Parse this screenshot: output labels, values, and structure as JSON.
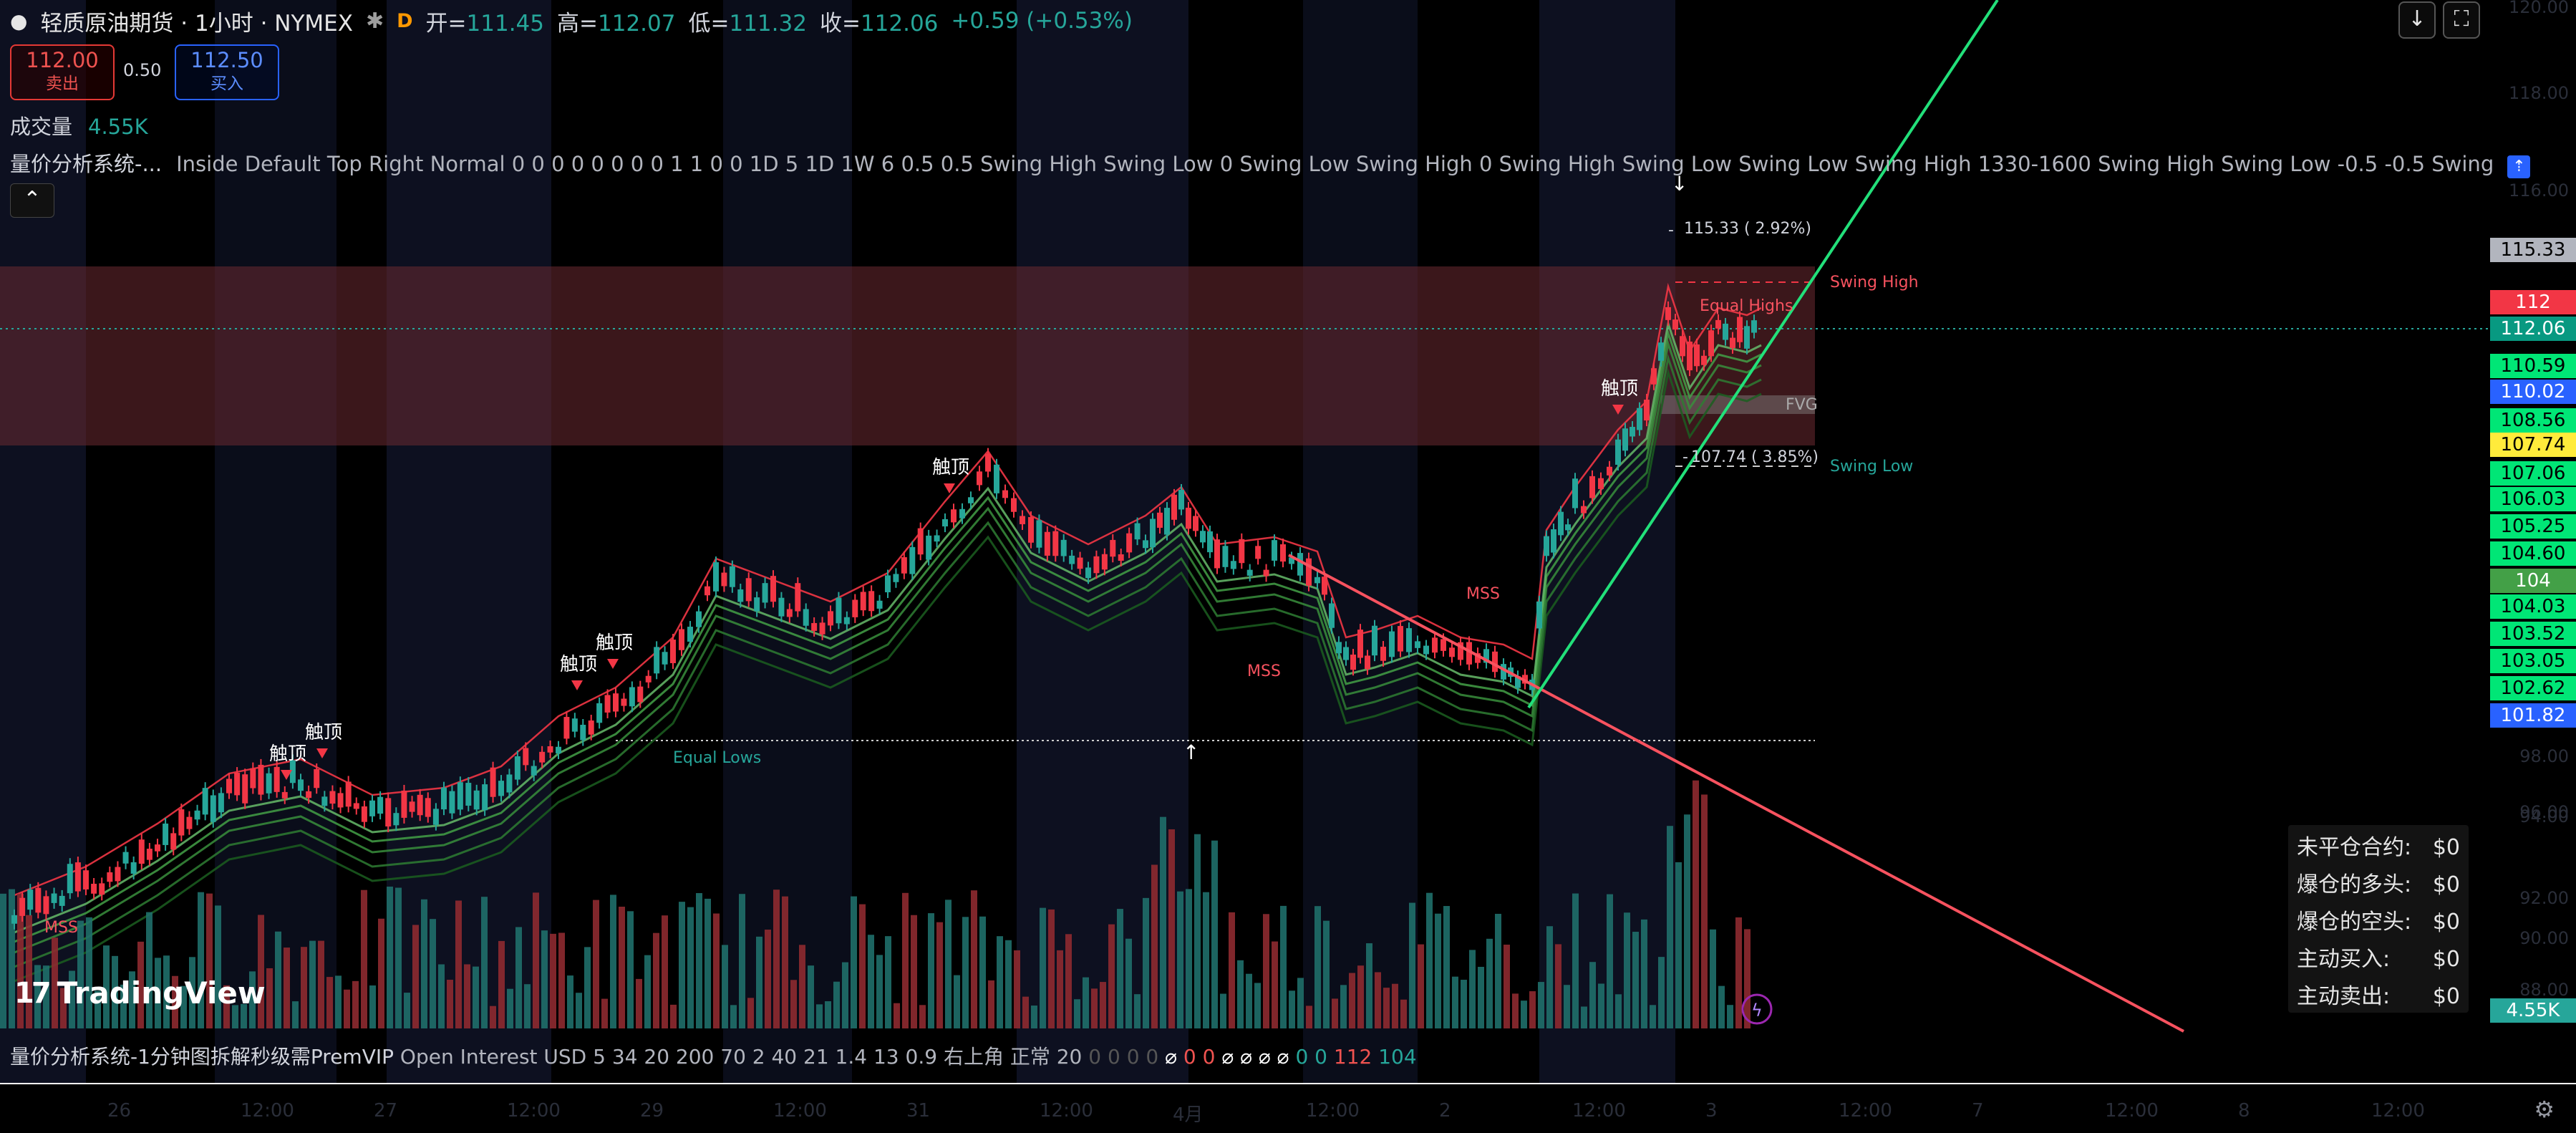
{
  "header": {
    "symbol": "轻质原油期货 · 1小时 · NYMEX",
    "interval_badge": "D",
    "open_label": "开=",
    "open": "111.45",
    "high_label": "高=",
    "high": "112.07",
    "low_label": "低=",
    "low": "111.32",
    "close_label": "收=",
    "close": "112.06",
    "change": "+0.59 (+0.53%)"
  },
  "trade": {
    "sell_price": "112.00",
    "sell_label": "卖出",
    "spread": "0.50",
    "buy_price": "112.50",
    "buy_label": "买入"
  },
  "volume": {
    "label": "成交量",
    "value": "4.55K"
  },
  "indicator": {
    "name": "量价分析系统-...",
    "params": "Inside Default Top Right Normal 0 0 0 0 0 0 0 0 1 1 0 0 1D 5 1D 1W 6 0.5 0.5 Swing High Swing Low 0 Swing Low Swing High 0 Swing High Swing Low Swing Low Swing High 1330-1600 Swing High Swing Low -0.5 -0.5 Swing"
  },
  "chart_labels": {
    "touch_top": "触顶",
    "swing_high": "Swing High",
    "swing_low": "Swing Low",
    "equal_highs": "Equal Highs",
    "equal_lows": "Equal Lows",
    "fvg": "FVG",
    "mss": "MSS",
    "measure_high": "115.33 ( 2.92%)",
    "measure_low": "107.74 ( 3.85%)"
  },
  "price_labels": [
    {
      "text": "115.33",
      "bg": "#b2b5be"
    },
    {
      "text": "112",
      "bg": "#f23645"
    },
    {
      "text": "112.06",
      "bg": "#089981"
    },
    {
      "text": "110.59",
      "bg": "#00e676"
    },
    {
      "text": "110.02",
      "bg": "#2962ff"
    },
    {
      "text": "108.56",
      "bg": "#00e676"
    },
    {
      "text": "107.74",
      "bg": "#ffeb3b"
    },
    {
      "text": "107.06",
      "bg": "#00e676"
    },
    {
      "text": "106.03",
      "bg": "#00e676"
    },
    {
      "text": "105.25",
      "bg": "#00e676"
    },
    {
      "text": "104.60",
      "bg": "#00e676"
    },
    {
      "text": "104",
      "bg": "#43a047"
    },
    {
      "text": "104.03",
      "bg": "#00e676"
    },
    {
      "text": "103.52",
      "bg": "#00e676"
    },
    {
      "text": "103.05",
      "bg": "#00e676"
    },
    {
      "text": "102.62",
      "bg": "#00e676"
    },
    {
      "text": "101.82",
      "bg": "#2962ff"
    },
    {
      "text": "4.55K",
      "bg": "#26a69a"
    }
  ],
  "y_ticks": [
    "120.00",
    "118.00",
    "116.00",
    "98.00",
    "96.00",
    "94.00",
    "92.00",
    "90.00",
    "88.00"
  ],
  "info_panel": [
    {
      "label": "未平仓合约:",
      "value": "$0"
    },
    {
      "label": "爆仓的多头:",
      "value": "$0"
    },
    {
      "label": "爆仓的空头:",
      "value": "$0"
    },
    {
      "label": "主动买入:",
      "value": "$0"
    },
    {
      "label": "主动卖出:",
      "value": "$0"
    }
  ],
  "logo": "TradingView",
  "bottom_indicator": {
    "name": "量价分析系统-1分钟图拆解秒级需PremVIP",
    "params": "Open Interest USD 5 34 20 200 70 2 40 21 1.4 13 0.9 右上角 正常 20",
    "zeros": "0 0 0 0",
    "v1": "⌀",
    "v2": "0",
    "v3": "0",
    "v4": "⌀ ⌀ ⌀ ⌀",
    "v5": "0 0",
    "v6": "112",
    "v7": "104"
  },
  "x_ticks": [
    "26",
    "12:00",
    "27",
    "12:00",
    "29",
    "12:00",
    "31",
    "12:00",
    "4月",
    "12:00",
    "2",
    "12:00",
    "3",
    "12:00",
    "7",
    "12:00",
    "8",
    "12:00"
  ],
  "colors": {
    "up": "#26a69a",
    "down": "#f23645",
    "accent": "#2962ff"
  }
}
